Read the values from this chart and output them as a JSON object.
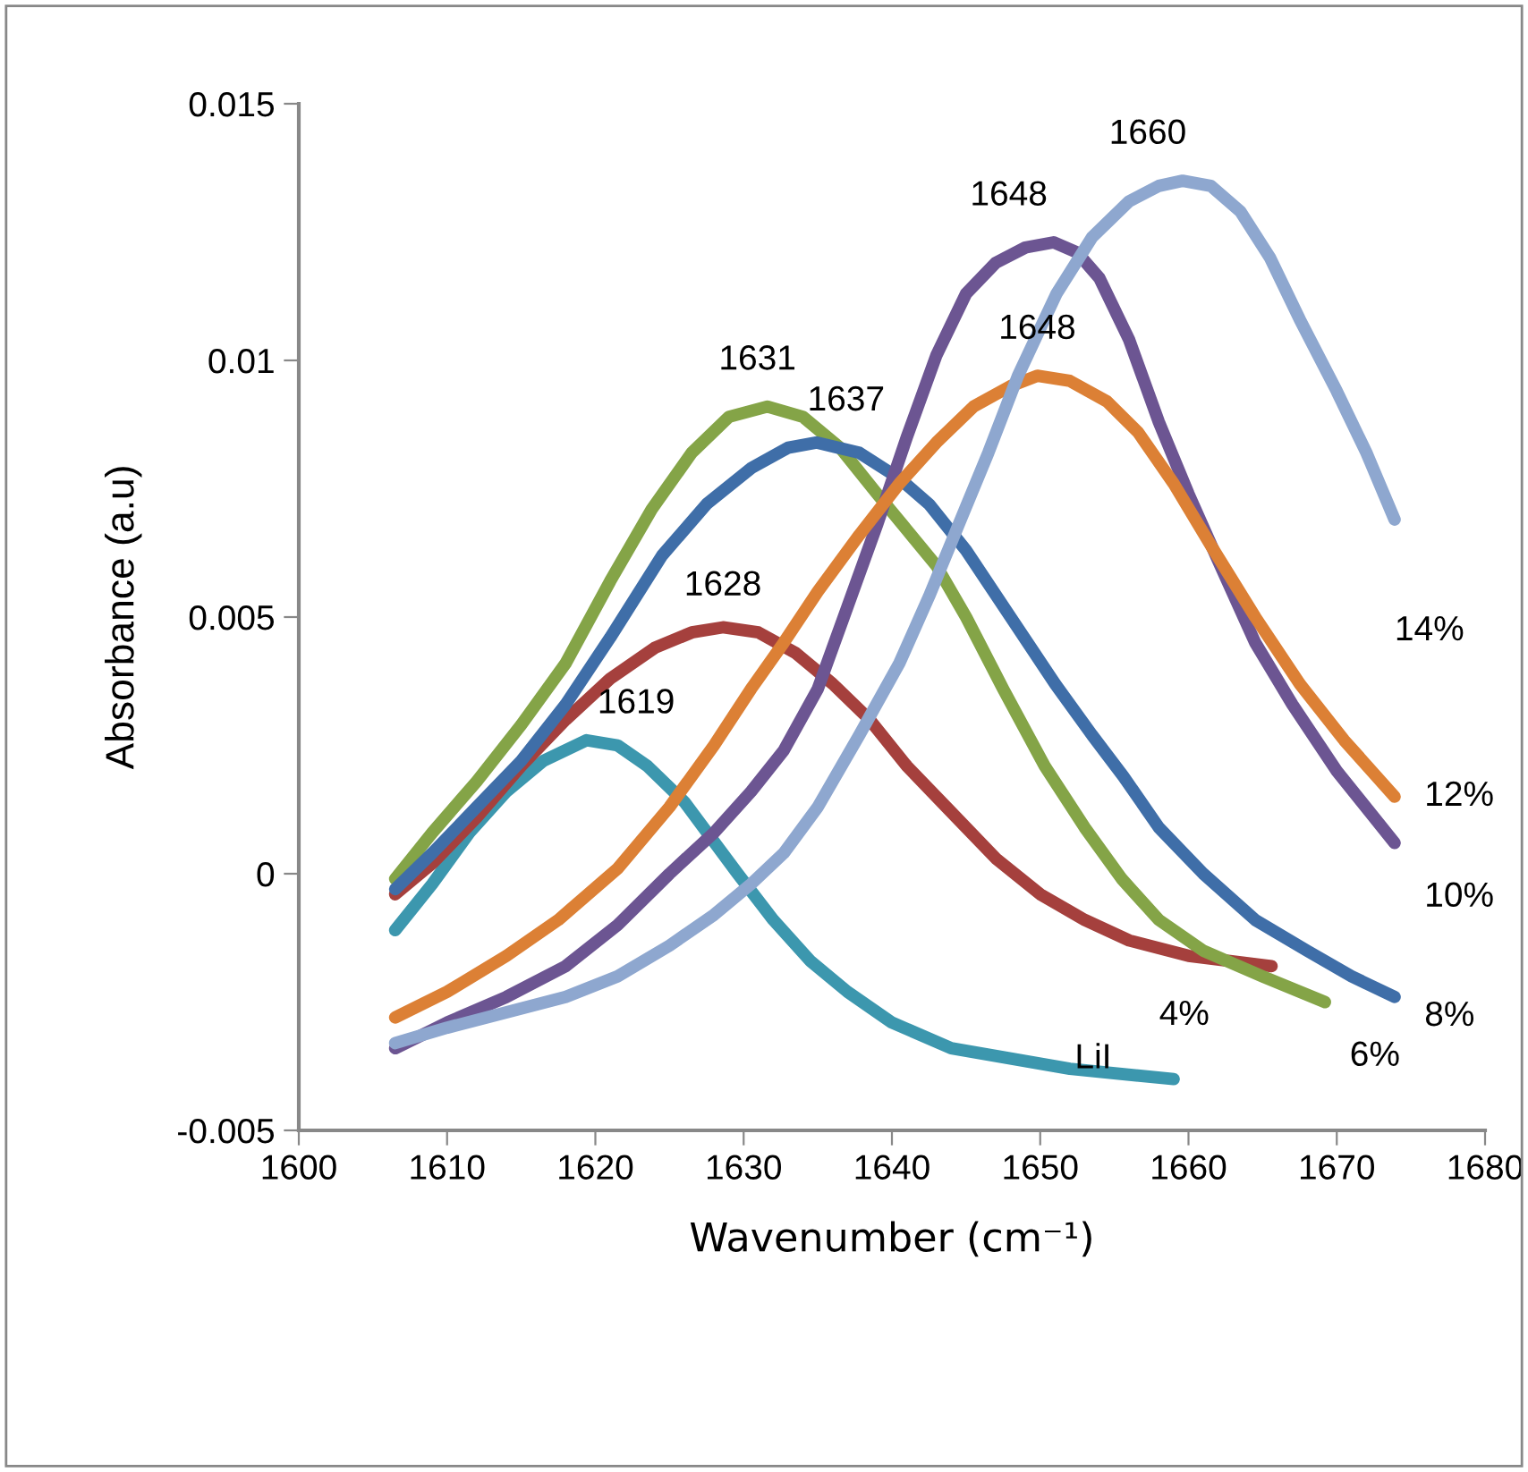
{
  "chart_data": {
    "type": "line",
    "xlabel": "Wavenumber (cm⁻¹)",
    "ylabel": "Absorbance (a.u)",
    "xlim": [
      1600,
      1680
    ],
    "xticks": [
      1600,
      1610,
      1620,
      1630,
      1640,
      1650,
      1660,
      1670,
      1680
    ],
    "ylim": [
      -0.005,
      0.015
    ],
    "yticks": [
      -0.005,
      0,
      0.005,
      0.01,
      0.015
    ],
    "grid": false,
    "legend": false,
    "marker": "none",
    "line_style": "solid",
    "series": [
      {
        "name": "LiI",
        "color": "#3c97ae",
        "x": [
          1606.5,
          1609,
          1611.5,
          1614,
          1616.5,
          1619.4,
          1621.5,
          1623.5,
          1626,
          1629.6,
          1632,
          1634.5,
          1637,
          1640,
          1644,
          1648,
          1652,
          1659
        ],
        "values": [
          -0.0011,
          -0.0002,
          0.0008,
          0.0016,
          0.0022,
          0.0026,
          0.0025,
          0.0021,
          0.0014,
          0.0,
          -0.0009,
          -0.0017,
          -0.0023,
          -0.0029,
          -0.0034,
          -0.0036,
          -0.0038,
          -0.004
        ]
      },
      {
        "name": "4%",
        "color": "#a5403d",
        "x": [
          1606.5,
          1609,
          1612,
          1615,
          1618,
          1621,
          1624,
          1626.5,
          1628.6,
          1631,
          1633.5,
          1636,
          1638.5,
          1641,
          1644,
          1647,
          1650,
          1653,
          1656,
          1660,
          1665.6
        ],
        "values": [
          -0.0004,
          0.0002,
          0.0011,
          0.0021,
          0.003,
          0.0038,
          0.0044,
          0.0047,
          0.0048,
          0.0047,
          0.0043,
          0.0037,
          0.003,
          0.0021,
          0.0012,
          0.0003,
          -0.0004,
          -0.0009,
          -0.0013,
          -0.0016,
          -0.0018
        ]
      },
      {
        "name": "6%",
        "color": "#84a447",
        "x": [
          1606.5,
          1609,
          1612,
          1615,
          1618,
          1621,
          1623.8,
          1626.5,
          1629,
          1631.6,
          1634,
          1636.5,
          1639,
          1641,
          1643,
          1645,
          1647.5,
          1650.3,
          1653,
          1655.5,
          1658,
          1661,
          1665,
          1669.2
        ],
        "values": [
          -0.0001,
          0.0008,
          0.0018,
          0.0029,
          0.0041,
          0.0057,
          0.0071,
          0.0082,
          0.0089,
          0.0091,
          0.0089,
          0.0083,
          0.0074,
          0.0067,
          0.006,
          0.005,
          0.0036,
          0.0021,
          0.0009,
          -0.0001,
          -0.0009,
          -0.0015,
          -0.002,
          -0.0025
        ]
      },
      {
        "name": "8%",
        "color": "#3f6ea8",
        "x": [
          1606.5,
          1609,
          1612,
          1615,
          1618,
          1621,
          1624.5,
          1627.5,
          1630.5,
          1633,
          1634.9,
          1637.8,
          1640.5,
          1642.5,
          1645,
          1648,
          1651,
          1653.5,
          1655.6,
          1658,
          1661,
          1664.5,
          1668,
          1671,
          1673.9
        ],
        "values": [
          -0.0003,
          0.0004,
          0.0013,
          0.0022,
          0.0033,
          0.0046,
          0.0062,
          0.0072,
          0.0079,
          0.0083,
          0.0084,
          0.0082,
          0.0077,
          0.0072,
          0.0063,
          0.005,
          0.0037,
          0.0027,
          0.0019,
          0.0009,
          0.0,
          -0.0009,
          -0.0015,
          -0.002,
          -0.0024
        ]
      },
      {
        "name": "10%",
        "color": "#6c5592",
        "x": [
          1606.5,
          1610,
          1614,
          1618,
          1621.5,
          1625,
          1628,
          1630.5,
          1632.7,
          1635,
          1637,
          1639,
          1641,
          1643,
          1645,
          1647,
          1649,
          1650.9,
          1652.5,
          1654,
          1656,
          1658,
          1660,
          1662,
          1664.5,
          1667,
          1670,
          1673.9
        ],
        "values": [
          -0.0034,
          -0.0029,
          -0.0024,
          -0.0018,
          -0.001,
          0.0,
          0.0008,
          0.0016,
          0.0024,
          0.0036,
          0.0052,
          0.0068,
          0.0085,
          0.0101,
          0.0113,
          0.0119,
          0.0122,
          0.0123,
          0.0121,
          0.0116,
          0.0104,
          0.0088,
          0.0074,
          0.0061,
          0.0045,
          0.0033,
          0.002,
          0.0006
        ]
      },
      {
        "name": "12%",
        "color": "#dc8035",
        "x": [
          1606.5,
          1610,
          1614,
          1617.5,
          1621.5,
          1625,
          1628,
          1630.5,
          1632.7,
          1635,
          1637.8,
          1640.5,
          1643,
          1645.5,
          1648,
          1649.8,
          1652,
          1654.5,
          1656.6,
          1659,
          1661.5,
          1664.5,
          1667.5,
          1670.5,
          1673.9
        ],
        "values": [
          -0.0028,
          -0.0023,
          -0.0016,
          -0.0009,
          0.0001,
          0.0013,
          0.0025,
          0.0036,
          0.0045,
          0.0055,
          0.0066,
          0.0076,
          0.0084,
          0.0091,
          0.0095,
          0.0097,
          0.0096,
          0.0092,
          0.0086,
          0.0076,
          0.0064,
          0.005,
          0.0037,
          0.0026,
          0.0015
        ]
      },
      {
        "name": "14%",
        "color": "#8ea7cf",
        "x": [
          1606.5,
          1610,
          1614,
          1618,
          1621.5,
          1625,
          1628,
          1630.5,
          1632.7,
          1635,
          1637.8,
          1640.5,
          1642.5,
          1644.5,
          1646.5,
          1648.5,
          1651.1,
          1653.5,
          1656,
          1658,
          1659.6,
          1661.5,
          1663.5,
          1665.5,
          1667.5,
          1670,
          1672,
          1673.9
        ],
        "values": [
          -0.0033,
          -0.003,
          -0.0027,
          -0.0024,
          -0.002,
          -0.0014,
          -0.0008,
          -0.0002,
          0.0004,
          0.0013,
          0.0027,
          0.0041,
          0.0054,
          0.0068,
          0.0082,
          0.0097,
          0.0113,
          0.0124,
          0.0131,
          0.0134,
          0.0135,
          0.0134,
          0.0129,
          0.012,
          0.0108,
          0.0094,
          0.0082,
          0.0069
        ]
      }
    ],
    "annotations": [
      {
        "text": "1619",
        "x": 1619.4,
        "y": 0.0026
      },
      {
        "text": "1628",
        "x": 1628.6,
        "y": 0.0048
      },
      {
        "text": "1631",
        "x": 1631.6,
        "y": 0.0091
      },
      {
        "text": "1637",
        "x": 1634.9,
        "y": 0.0084
      },
      {
        "text": "1648",
        "x": 1650.9,
        "y": 0.0123
      },
      {
        "text": "1648",
        "x": 1649.8,
        "y": 0.0097
      },
      {
        "text": "1660",
        "x": 1659.6,
        "y": 0.0135
      }
    ]
  }
}
